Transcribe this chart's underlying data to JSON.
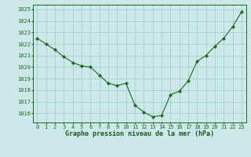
{
  "x": [
    0,
    1,
    2,
    3,
    4,
    5,
    6,
    7,
    8,
    9,
    10,
    11,
    12,
    13,
    14,
    15,
    16,
    17,
    18,
    19,
    20,
    21,
    22,
    23
  ],
  "y": [
    1022.5,
    1022.0,
    1021.5,
    1020.9,
    1020.4,
    1020.1,
    1020.0,
    1019.3,
    1018.6,
    1018.4,
    1018.6,
    1016.7,
    1016.1,
    1015.7,
    1015.8,
    1017.6,
    1017.9,
    1018.8,
    1020.5,
    1021.0,
    1021.8,
    1022.5,
    1023.5,
    1024.8
  ],
  "line_color": "#1a6b1a",
  "marker_color": "#1a6b1a",
  "bg_color": "#cce8e8",
  "grid_color": "#99cccc",
  "xlabel": "Graphe pression niveau de la mer (hPa)",
  "xlabel_color": "#1a5c1a",
  "tick_color": "#1a6b1a",
  "ylim": [
    1015.2,
    1025.4
  ],
  "xlim": [
    -0.5,
    23.5
  ],
  "yticks": [
    1016,
    1017,
    1018,
    1019,
    1020,
    1021,
    1022,
    1023,
    1024,
    1025
  ],
  "xticks": [
    0,
    1,
    2,
    3,
    4,
    5,
    6,
    7,
    8,
    9,
    10,
    11,
    12,
    13,
    14,
    15,
    16,
    17,
    18,
    19,
    20,
    21,
    22,
    23
  ],
  "tick_fontsize": 5.0,
  "xlabel_fontsize": 6.0,
  "linewidth": 0.8,
  "markersize": 2.2
}
